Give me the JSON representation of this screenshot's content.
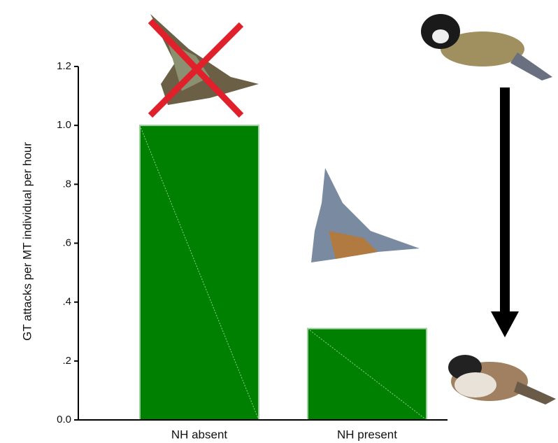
{
  "chart_data": {
    "type": "bar",
    "y_label": "GT attacks per MT individual per hour",
    "categories": [
      "NH absent",
      "NH present"
    ],
    "values": [
      1.0,
      0.31
    ],
    "color": "#008000",
    "ylim": [
      0,
      1.2
    ],
    "yticks": [
      {
        "value": 0,
        "label": "0.0"
      },
      {
        "value": 0.2,
        "label": ".2"
      },
      {
        "value": 0.4,
        "label": ".4"
      },
      {
        "value": 0.6,
        "label": ".6"
      },
      {
        "value": 0.8,
        "label": ".8"
      },
      {
        "value": 1.0,
        "label": "1.0"
      },
      1.2
    ],
    "grid": false
  }
}
